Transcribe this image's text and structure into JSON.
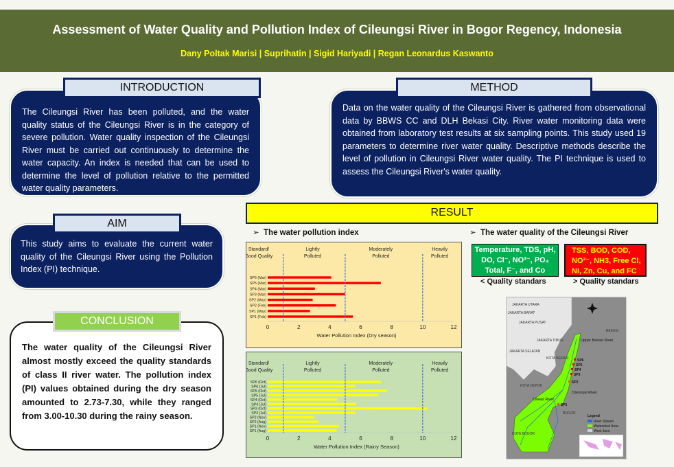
{
  "header": {
    "title": "Assessment of Water Quality and Pollution Index of Cileungsi River in Bogor Regency, Indonesia",
    "authors": "Dany Poltak Marisi | Suprihatin | Sigid Hariyadi | Regan Leonardus Kaswanto"
  },
  "introduction": {
    "label": "INTRODUCTION",
    "text": "The Cileungsi River has been polluted, and the water quality status of the Cileungsi River is in the category of severe pollution. Water quality inspection of the Cileungsi River must be carried out continuously to determine the water capacity. An index is needed that can be used to determine the level of pollution relative to the permitted water quality parameters."
  },
  "method": {
    "label": "METHOD",
    "text": "Data on the water quality of the Cileungsi River is gathered from observational data by BBWS CC and DLH Bekasi City. River water monitoring data were obtained from laboratory test results at six sampling points. This study used 19 parameters to determine river water quality. Descriptive methods describe the level of pollution in Cileungsi River water quality. The PI technique is used to assess the Cileungsi River's water quality."
  },
  "aim": {
    "label": "AIM",
    "text": "This study aims to evaluate the current water quality of the Cileungsi River using the Pollution Index (PI) technique."
  },
  "conclusion": {
    "label": "CONCLUSION",
    "text": "The water quality of the Cileungsi River almost mostly exceed the quality standards of class II river water. The pollution index (PI) values obtained during the dry season amounted to 2.73-7.30, while they ranged from 3.00-10.30 during the rainy season."
  },
  "result": {
    "label": "RESULT",
    "bullet1": "The water pollution index",
    "bullet2": "The water quality of the Cileungsi River",
    "good_params": "Temperature, TDS, pH, DO, Cl⁻, NO³⁻, PO₄ Total, F⁻, and Co",
    "good_caption": "< Quality standars",
    "bad_params": "TSS, BOD, COD, NO²⁻, NH3, Free Cl, Ni, Zn, Cu, and FC",
    "bad_caption": "> Quality standars"
  },
  "chart_data": [
    {
      "type": "bar",
      "orientation": "horizontal",
      "xlabel": "Water Pollution Index (Dry season)",
      "xlim": [
        0,
        12
      ],
      "xticks": [
        "0",
        "2",
        "4",
        "6",
        "8",
        "10",
        "12"
      ],
      "zones": [
        "Standard/\nGood Quality",
        "Lightly\nPolluted",
        "Moderately\nPolluted",
        "Heavily\nPolluted"
      ],
      "thresholds": [
        1,
        5,
        10
      ],
      "color": "#ff0000",
      "categories": [
        "SP6 (Mar)",
        "SP5 (Mar)",
        "SP4 (Mar)",
        "SP3 (Mar)",
        "SP2 (May)",
        "SP2 (Feb)",
        "SP1 (May)",
        "SP1 (Feb)"
      ],
      "values": [
        4.1,
        7.3,
        3.05,
        5.0,
        2.9,
        4.4,
        2.73,
        5.5
      ]
    },
    {
      "type": "bar",
      "orientation": "horizontal",
      "xlabel": "Water Pollution Index (Rainy Season)",
      "xlim": [
        0,
        12
      ],
      "xticks": [
        "0",
        "2",
        "4",
        "6",
        "8",
        "10",
        "12"
      ],
      "zones": [
        "Standard/\nGood Quality",
        "Lightly\nPolluted",
        "Moderately\nPolluted",
        "Heavily\nPolluted"
      ],
      "thresholds": [
        1,
        5,
        10
      ],
      "color": "#ffff00",
      "categories": [
        "SP6 (Oct)",
        "SP6 (Jul)",
        "SP5 (Oct)",
        "SP5 (Jul)",
        "SP4 (Oct)",
        "SP4 (Jul)",
        "SP3 (Oct)",
        "SP3 (Jul)",
        "SP2 (Nov)",
        "SP2 (Aug)",
        "SP1 (Nov)",
        "SP1 (Aug)"
      ],
      "values": [
        7.3,
        5.65,
        7.7,
        7.15,
        4.5,
        5.7,
        10.3,
        5.65,
        3.0,
        3.3,
        4.6,
        4.45
      ]
    }
  ],
  "map": {
    "points": [
      "SP6",
      "SP5",
      "SP4",
      "SP3",
      "SP2",
      "SP1"
    ],
    "rivers": [
      "Upper Bekasi River",
      "Cileungsi River",
      "Cikeas River"
    ],
    "areas": [
      "JAKARTA UTARA",
      "JAKARTA BARAT",
      "JAKARTA PUSAT",
      "JAKARTA TIMUR",
      "JAKARTA SELATAN",
      "KOTA DEPOK",
      "KOTA BOGOR",
      "BOGOR",
      "BEKASI",
      "KOTA BEKASI"
    ],
    "legend_title": "Legend",
    "legend": [
      "River Stream",
      "Watershed Area",
      "West Java"
    ],
    "colors": {
      "river": "#1f6fd6",
      "watershed": "#7cfc00",
      "west_java": "#d0d0d0"
    }
  }
}
